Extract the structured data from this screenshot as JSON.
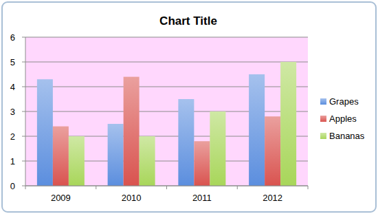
{
  "chart_data": {
    "type": "bar",
    "title": "Chart Title",
    "categories": [
      "2009",
      "2010",
      "2011",
      "2012"
    ],
    "series": [
      {
        "name": "Grapes",
        "color": "#5b8ede",
        "values": [
          4.3,
          2.5,
          3.5,
          4.5
        ]
      },
      {
        "name": "Apples",
        "color": "#d9534f",
        "values": [
          2.4,
          4.4,
          1.8,
          2.8
        ]
      },
      {
        "name": "Bananas",
        "color": "#a8d65a",
        "values": [
          2.0,
          2.0,
          3.0,
          5.0
        ]
      }
    ],
    "ylim": [
      0,
      6
    ],
    "yticks": [
      0,
      1,
      2,
      3,
      4,
      5,
      6
    ],
    "grid": true,
    "legend": "right"
  }
}
